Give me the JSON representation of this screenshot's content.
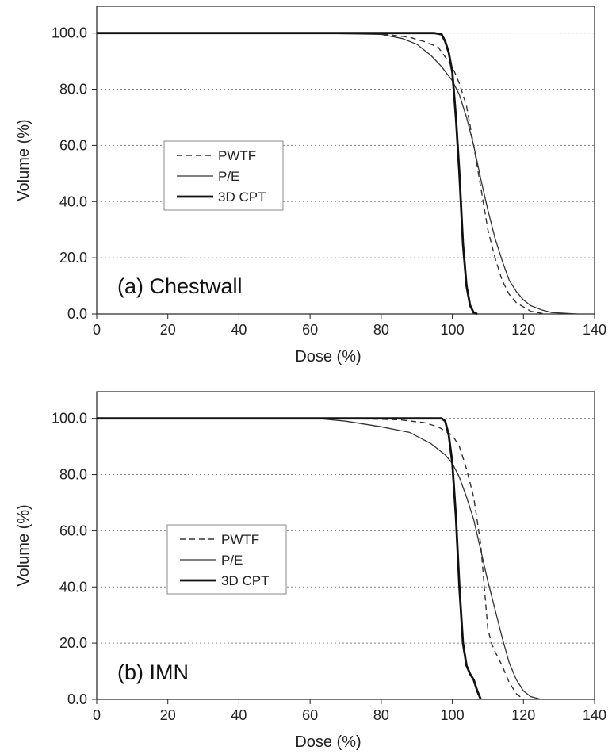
{
  "chart_data": [
    {
      "type": "line",
      "annotation": "(a) Chestwall",
      "xlabel": "Dose (%)",
      "ylabel": "Volume (%)",
      "xlim": [
        0,
        140
      ],
      "ylim": [
        0,
        100
      ],
      "xticks": [
        "0",
        "20",
        "40",
        "60",
        "80",
        "100",
        "120",
        "140"
      ],
      "yticks": [
        "0.0",
        "20.0",
        "40.0",
        "60.0",
        "80.0",
        "100.0"
      ],
      "grid": "horizontal dotted",
      "legend_position": "left",
      "series": [
        {
          "name": "PWTF",
          "style": "dashed",
          "points": [
            [
              0,
              100
            ],
            [
              60,
              100
            ],
            [
              80,
              99.7
            ],
            [
              88,
              98.5
            ],
            [
              92,
              97
            ],
            [
              96,
              95
            ],
            [
              100,
              88
            ],
            [
              102,
              82
            ],
            [
              104,
              74
            ],
            [
              106,
              60
            ],
            [
              108,
              45
            ],
            [
              110,
              30
            ],
            [
              112,
              20
            ],
            [
              114,
              12
            ],
            [
              116,
              7
            ],
            [
              118,
              4
            ],
            [
              120,
              2.5
            ],
            [
              122,
              1
            ],
            [
              126,
              0
            ]
          ]
        },
        {
          "name": "P/E",
          "style": "thin",
          "points": [
            [
              0,
              100
            ],
            [
              60,
              100
            ],
            [
              80,
              99.5
            ],
            [
              86,
              98
            ],
            [
              90,
              96
            ],
            [
              94,
              92
            ],
            [
              97,
              88
            ],
            [
              100,
              83
            ],
            [
              102,
              78
            ],
            [
              104,
              70
            ],
            [
              106,
              60
            ],
            [
              108,
              48
            ],
            [
              110,
              37
            ],
            [
              112,
              27
            ],
            [
              114,
              19
            ],
            [
              116,
              12
            ],
            [
              118,
              8
            ],
            [
              120,
              5
            ],
            [
              122,
              3
            ],
            [
              125,
              1.5
            ],
            [
              128,
              0.5
            ],
            [
              135,
              0
            ]
          ]
        },
        {
          "name": "3D CPT",
          "style": "thick",
          "points": [
            [
              0,
              100
            ],
            [
              95,
              100
            ],
            [
              97,
              99.5
            ],
            [
              98,
              97
            ],
            [
              99,
              93
            ],
            [
              100,
              86
            ],
            [
              101,
              70
            ],
            [
              102,
              50
            ],
            [
              103,
              25
            ],
            [
              104,
              10
            ],
            [
              105,
              3
            ],
            [
              106,
              0.5
            ],
            [
              107,
              0
            ]
          ]
        }
      ]
    },
    {
      "type": "line",
      "annotation": "(b) IMN",
      "xlabel": "Dose (%)",
      "ylabel": "Volume (%)",
      "xlim": [
        0,
        140
      ],
      "ylim": [
        0,
        100
      ],
      "xticks": [
        "0",
        "20",
        "40",
        "60",
        "80",
        "100",
        "120",
        "140"
      ],
      "yticks": [
        "0.0",
        "20.0",
        "40.0",
        "60.0",
        "80.0",
        "100.0"
      ],
      "grid": "horizontal dotted",
      "legend_position": "left",
      "series": [
        {
          "name": "PWTF",
          "style": "dashed",
          "points": [
            [
              0,
              100
            ],
            [
              70,
              100
            ],
            [
              85,
              99.5
            ],
            [
              92,
              98.5
            ],
            [
              96,
              97
            ],
            [
              100,
              94
            ],
            [
              102,
              90
            ],
            [
              104,
              82
            ],
            [
              106,
              72
            ],
            [
              108,
              55
            ],
            [
              109,
              40
            ],
            [
              110,
              25
            ],
            [
              111,
              20
            ],
            [
              112,
              17
            ],
            [
              114,
              12
            ],
            [
              116,
              6
            ],
            [
              118,
              2
            ],
            [
              120,
              0
            ]
          ]
        },
        {
          "name": "P/E",
          "style": "thin",
          "points": [
            [
              0,
              100
            ],
            [
              62,
              100
            ],
            [
              70,
              99
            ],
            [
              80,
              97
            ],
            [
              88,
              95
            ],
            [
              94,
              91
            ],
            [
              98,
              87
            ],
            [
              100,
              84
            ],
            [
              102,
              79
            ],
            [
              104,
              72
            ],
            [
              106,
              64
            ],
            [
              108,
              53
            ],
            [
              110,
              42
            ],
            [
              112,
              32
            ],
            [
              114,
              22
            ],
            [
              116,
              13
            ],
            [
              118,
              7
            ],
            [
              120,
              3
            ],
            [
              122,
              1
            ],
            [
              125,
              0
            ]
          ]
        },
        {
          "name": "3D CPT",
          "style": "thick",
          "points": [
            [
              0,
              100
            ],
            [
              97,
              100
            ],
            [
              98,
              99
            ],
            [
              99,
              94
            ],
            [
              100,
              84
            ],
            [
              101,
              65
            ],
            [
              102,
              40
            ],
            [
              103,
              20
            ],
            [
              104,
              12
            ],
            [
              105,
              9
            ],
            [
              106,
              7
            ],
            [
              107,
              3
            ],
            [
              108,
              0
            ]
          ]
        }
      ]
    }
  ]
}
